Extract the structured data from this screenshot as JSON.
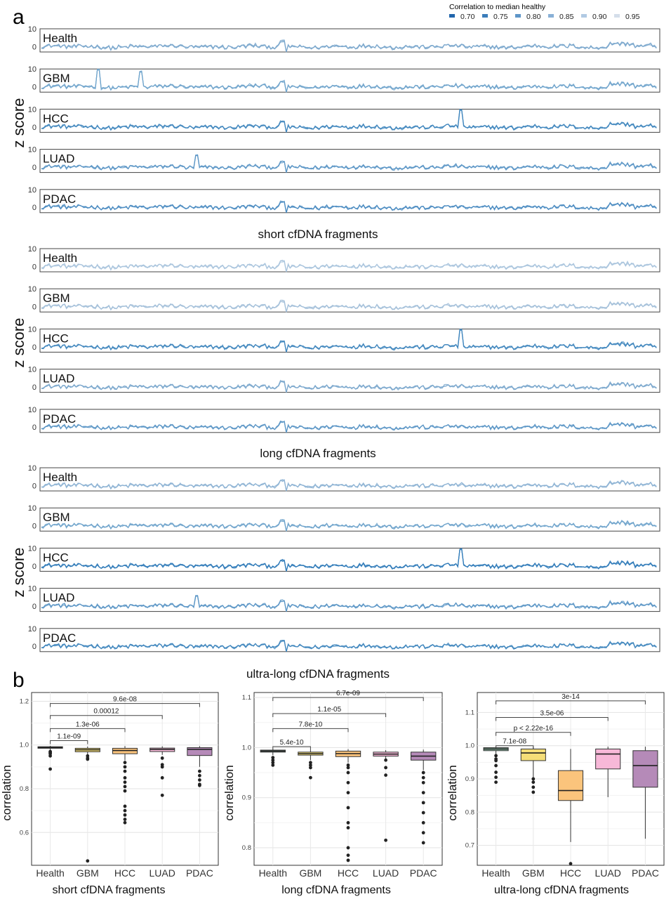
{
  "panel_labels": {
    "a": "a",
    "b": "b"
  },
  "legend": {
    "title": "Correlation to median healthy",
    "items": [
      {
        "label": "0.70",
        "color": "#2166ac"
      },
      {
        "label": "0.75",
        "color": "#3b7dba"
      },
      {
        "label": "0.80",
        "color": "#5e95c8"
      },
      {
        "label": "0.85",
        "color": "#89b0d6"
      },
      {
        "label": "0.90",
        "color": "#b1cae3"
      },
      {
        "label": "0.95",
        "color": "#d4deea"
      }
    ]
  },
  "palette": {
    "Health": "#8fbfa8",
    "GBM": "#f5de78",
    "HCC": "#fbc47c",
    "LUAD": "#f7b8d8",
    "PDAC": "#b58ab8"
  },
  "chart_data": [
    {
      "type": "line",
      "panel": "a",
      "xlabel": "short cfDNA fragments",
      "ylabel": "z score",
      "y_ticks": [
        "10",
        "0"
      ],
      "ylim": [
        -3,
        10
      ],
      "facets": [
        {
          "name": "Health",
          "color": "#7aa7cc",
          "spikes": []
        },
        {
          "name": "GBM",
          "color": "#6fa3cb",
          "spikes": [
            {
              "x": 0.093,
              "y": 10
            },
            {
              "x": 0.162,
              "y": 9
            }
          ]
        },
        {
          "name": "HCC",
          "color": "#3f86bd",
          "spikes": [
            {
              "x": 0.68,
              "y": 10
            }
          ]
        },
        {
          "name": "LUAD",
          "color": "#5a95c6",
          "spikes": [
            {
              "x": 0.251,
              "y": 7
            }
          ]
        },
        {
          "name": "PDAC",
          "color": "#4a8bc1",
          "spikes": []
        }
      ]
    },
    {
      "type": "line",
      "panel": "a",
      "xlabel": "long cfDNA fragments",
      "ylabel": "z score",
      "y_ticks": [
        "10",
        "0"
      ],
      "ylim": [
        -3,
        10
      ],
      "facets": [
        {
          "name": "Health",
          "color": "#a9c4dd",
          "spikes": []
        },
        {
          "name": "GBM",
          "color": "#a3bfd9",
          "spikes": []
        },
        {
          "name": "HCC",
          "color": "#3f86bd",
          "spikes": [
            {
              "x": 0.68,
              "y": 10
            }
          ]
        },
        {
          "name": "LUAD",
          "color": "#7aa7cc",
          "spikes": []
        },
        {
          "name": "PDAC",
          "color": "#5a95c6",
          "spikes": []
        }
      ]
    },
    {
      "type": "line",
      "panel": "a",
      "xlabel": "ultra-long cfDNA fragments",
      "ylabel": "z score",
      "y_ticks": [
        "10",
        "0"
      ],
      "ylim": [
        -3,
        10
      ],
      "facets": [
        {
          "name": "Health",
          "color": "#8db3d4",
          "spikes": []
        },
        {
          "name": "GBM",
          "color": "#6fa3cb",
          "spikes": []
        },
        {
          "name": "HCC",
          "color": "#2f7ab8",
          "spikes": [
            {
              "x": 0.68,
              "y": 10
            }
          ]
        },
        {
          "name": "LUAD",
          "color": "#5a95c6",
          "spikes": [
            {
              "x": 0.251,
              "y": 6
            }
          ]
        },
        {
          "name": "PDAC",
          "color": "#3f86bd",
          "spikes": []
        }
      ]
    },
    {
      "type": "box",
      "panel": "b",
      "xlabel": "short cfDNA fragments",
      "ylabel": "correlation",
      "ylim": [
        0.45,
        1.24
      ],
      "y_ticks": [
        0.6,
        0.8,
        1.0,
        1.2
      ],
      "y_tick_labels": [
        "0.6",
        "0.8",
        "1.0",
        "1.2"
      ],
      "categories": [
        "Health",
        "GBM",
        "HCC",
        "LUAD",
        "PDAC"
      ],
      "boxes": [
        {
          "q1": 0.985,
          "median": 0.989,
          "q3": 0.992,
          "lo": 0.975,
          "hi": 0.996,
          "outliers": [
            0.97,
            0.965,
            0.96,
            0.95,
            0.89
          ]
        },
        {
          "q1": 0.969,
          "median": 0.978,
          "q3": 0.985,
          "lo": 0.955,
          "hi": 0.993,
          "outliers": [
            0.95,
            0.94,
            0.935,
            0.47
          ]
        },
        {
          "q1": 0.96,
          "median": 0.975,
          "q3": 0.985,
          "lo": 0.93,
          "hi": 0.995,
          "outliers": [
            0.92,
            0.9,
            0.88,
            0.85,
            0.83,
            0.81,
            0.79,
            0.72,
            0.7,
            0.68,
            0.66,
            0.645
          ]
        },
        {
          "q1": 0.97,
          "median": 0.98,
          "q3": 0.986,
          "lo": 0.955,
          "hi": 0.994,
          "outliers": [
            0.94,
            0.91,
            0.9,
            0.85,
            0.77
          ]
        },
        {
          "q1": 0.952,
          "median": 0.98,
          "q3": 0.988,
          "lo": 0.9,
          "hi": 0.995,
          "outliers": [
            0.88,
            0.86,
            0.84,
            0.82,
            0.815
          ]
        }
      ],
      "comparisons": [
        {
          "label": "1.1e-09",
          "from": "Health",
          "to": "GBM",
          "y": 1.02
        },
        {
          "label": "1.3e-06",
          "from": "Health",
          "to": "HCC",
          "y": 1.075
        },
        {
          "label": "0.00012",
          "from": "Health",
          "to": "LUAD",
          "y": 1.135
        },
        {
          "label": "9.6e-08",
          "from": "Health",
          "to": "PDAC",
          "y": 1.19
        }
      ]
    },
    {
      "type": "box",
      "panel": "b",
      "xlabel": "long cfDNA fragments",
      "ylabel": "correlation",
      "ylim": [
        0.765,
        1.11
      ],
      "y_ticks": [
        0.8,
        0.9,
        1.0,
        1.1
      ],
      "y_tick_labels": [
        "0.8",
        "0.9",
        "1.0",
        "1.1"
      ],
      "categories": [
        "Health",
        "GBM",
        "HCC",
        "LUAD",
        "PDAC"
      ],
      "boxes": [
        {
          "q1": 0.991,
          "median": 0.993,
          "q3": 0.995,
          "lo": 0.985,
          "hi": 0.997,
          "outliers": [
            0.98,
            0.975,
            0.97,
            0.965
          ]
        },
        {
          "q1": 0.985,
          "median": 0.988,
          "q3": 0.991,
          "lo": 0.975,
          "hi": 0.995,
          "outliers": [
            0.97,
            0.965,
            0.96,
            0.94
          ]
        },
        {
          "q1": 0.982,
          "median": 0.988,
          "q3": 0.993,
          "lo": 0.97,
          "hi": 0.997,
          "outliers": [
            0.965,
            0.96,
            0.95,
            0.93,
            0.91,
            0.88,
            0.85,
            0.84,
            0.8,
            0.785,
            0.775
          ]
        },
        {
          "q1": 0.983,
          "median": 0.987,
          "q3": 0.991,
          "lo": 0.975,
          "hi": 0.995,
          "outliers": [
            0.975,
            0.96,
            0.945,
            0.815
          ]
        },
        {
          "q1": 0.975,
          "median": 0.983,
          "q3": 0.991,
          "lo": 0.955,
          "hi": 0.996,
          "outliers": [
            0.95,
            0.94,
            0.93,
            0.91,
            0.89,
            0.87,
            0.85,
            0.83,
            0.81
          ]
        }
      ],
      "comparisons": [
        {
          "label": "5.4e-10",
          "from": "Health",
          "to": "GBM",
          "y": 1.002
        },
        {
          "label": "7.8e-10",
          "from": "Health",
          "to": "HCC",
          "y": 1.038
        },
        {
          "label": "1.1e-05",
          "from": "Health",
          "to": "LUAD",
          "y": 1.068
        },
        {
          "label": "6.7e-09",
          "from": "Health",
          "to": "PDAC",
          "y": 1.1
        }
      ]
    },
    {
      "type": "box",
      "panel": "b",
      "xlabel": "ultra-long cfDNA fragments",
      "ylabel": "correlation",
      "ylim": [
        0.64,
        1.16
      ],
      "y_ticks": [
        0.7,
        0.8,
        0.9,
        1.0,
        1.1
      ],
      "y_tick_labels": [
        "0.7",
        "0.8",
        "0.9",
        "1.0",
        "1.1"
      ],
      "categories": [
        "Health",
        "GBM",
        "HCC",
        "LUAD",
        "PDAC"
      ],
      "boxes": [
        {
          "q1": 0.985,
          "median": 0.99,
          "q3": 0.994,
          "lo": 0.975,
          "hi": 0.997,
          "outliers": [
            0.97,
            0.96,
            0.955,
            0.94,
            0.92,
            0.905,
            0.89
          ]
        },
        {
          "q1": 0.955,
          "median": 0.978,
          "q3": 0.99,
          "lo": 0.9,
          "hi": 0.997,
          "outliers": [
            0.9,
            0.89,
            0.875,
            0.86
          ]
        },
        {
          "q1": 0.835,
          "median": 0.865,
          "q3": 0.925,
          "lo": 0.71,
          "hi": 0.99,
          "outliers": [
            0.645
          ]
        },
        {
          "q1": 0.93,
          "median": 0.975,
          "q3": 0.99,
          "lo": 0.845,
          "hi": 0.997,
          "outliers": []
        },
        {
          "q1": 0.875,
          "median": 0.94,
          "q3": 0.985,
          "lo": 0.72,
          "hi": 0.997,
          "outliers": []
        }
      ],
      "comparisons": [
        {
          "label": "7.1e-08",
          "from": "Health",
          "to": "GBM",
          "y": 1.0
        },
        {
          "label": "p < 2.22e-16",
          "from": "Health",
          "to": "HCC",
          "y": 1.04
        },
        {
          "label": "3.5e-06",
          "from": "Health",
          "to": "LUAD",
          "y": 1.085
        },
        {
          "label": "3e-14",
          "from": "Health",
          "to": "PDAC",
          "y": 1.135
        }
      ]
    }
  ]
}
